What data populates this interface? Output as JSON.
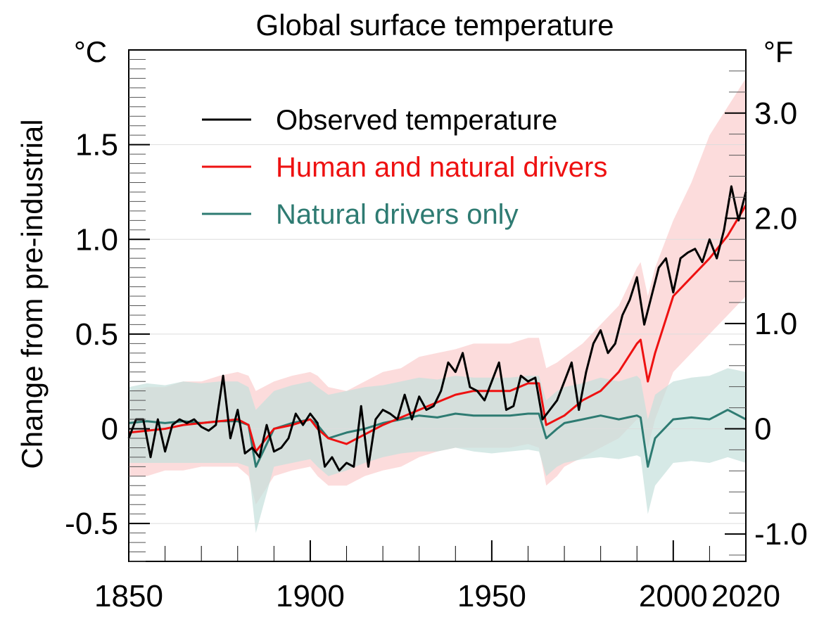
{
  "chart_data": {
    "type": "line",
    "title": "Global surface temperature",
    "ylabel": "Change from pre-industrial",
    "y_unit_left": "°C",
    "y_unit_right": "°F",
    "xlim": [
      1850,
      2020
    ],
    "ylim": [
      -0.7,
      2.0
    ],
    "grid": true,
    "legend_placement": "top-left",
    "x_ticks": [
      {
        "value": 1850,
        "label": "1850"
      },
      {
        "value": 1900,
        "label": "1900"
      },
      {
        "value": 1950,
        "label": "1950"
      },
      {
        "value": 2000,
        "label": "2000"
      },
      {
        "value": 2020,
        "label": "2020"
      }
    ],
    "y_ticks_left": [
      {
        "value": -0.5,
        "label": "-0.5"
      },
      {
        "value": 0,
        "label": "0"
      },
      {
        "value": 0.5,
        "label": "0.5"
      },
      {
        "value": 1.0,
        "label": "1.0"
      },
      {
        "value": 1.5,
        "label": "1.5"
      }
    ],
    "y_ticks_right": [
      {
        "value": -1.0,
        "label": "-1.0"
      },
      {
        "value": 0,
        "label": "0"
      },
      {
        "value": 1.0,
        "label": "1.0"
      },
      {
        "value": 2.0,
        "label": "2.0"
      },
      {
        "value": 3.0,
        "label": "3.0"
      }
    ],
    "series": [
      {
        "name": "Observed temperature",
        "color": "#000000",
        "x": [
          1850,
          1852,
          1854,
          1856,
          1858,
          1860,
          1862,
          1864,
          1866,
          1868,
          1870,
          1872,
          1874,
          1876,
          1878,
          1880,
          1882,
          1884,
          1886,
          1888,
          1890,
          1892,
          1894,
          1896,
          1898,
          1900,
          1902,
          1904,
          1906,
          1908,
          1910,
          1912,
          1914,
          1916,
          1918,
          1920,
          1922,
          1924,
          1926,
          1928,
          1930,
          1932,
          1934,
          1936,
          1938,
          1940,
          1942,
          1944,
          1946,
          1948,
          1950,
          1952,
          1954,
          1956,
          1958,
          1960,
          1962,
          1964,
          1966,
          1968,
          1970,
          1972,
          1974,
          1976,
          1978,
          1980,
          1982,
          1984,
          1986,
          1988,
          1990,
          1992,
          1994,
          1996,
          1998,
          2000,
          2002,
          2004,
          2006,
          2008,
          2010,
          2012,
          2014,
          2016,
          2018,
          2020
        ],
        "values": [
          -0.05,
          0.05,
          0.05,
          -0.15,
          0.05,
          -0.12,
          0.02,
          0.05,
          0.03,
          0.05,
          0.01,
          -0.01,
          0.02,
          0.28,
          -0.05,
          0.1,
          -0.13,
          -0.1,
          -0.15,
          0.02,
          -0.12,
          -0.1,
          -0.05,
          0.08,
          0.02,
          0.08,
          0.03,
          -0.2,
          -0.15,
          -0.22,
          -0.18,
          -0.2,
          0.12,
          -0.2,
          0.05,
          0.1,
          0.08,
          0.05,
          0.18,
          0.05,
          0.17,
          0.1,
          0.12,
          0.2,
          0.35,
          0.3,
          0.4,
          0.22,
          0.2,
          0.15,
          0.25,
          0.35,
          0.1,
          0.12,
          0.28,
          0.25,
          0.27,
          0.05,
          0.1,
          0.15,
          0.25,
          0.35,
          0.1,
          0.3,
          0.45,
          0.52,
          0.4,
          0.45,
          0.6,
          0.68,
          0.8,
          0.55,
          0.7,
          0.85,
          0.9,
          0.72,
          0.9,
          0.93,
          0.95,
          0.88,
          1.0,
          0.9,
          1.05,
          1.28,
          1.1,
          1.25
        ]
      },
      {
        "name": "Human and natural drivers",
        "color": "#ee1111",
        "x": [
          1850,
          1855,
          1860,
          1865,
          1870,
          1875,
          1880,
          1883,
          1885,
          1890,
          1895,
          1900,
          1902,
          1905,
          1910,
          1915,
          1920,
          1925,
          1930,
          1935,
          1940,
          1945,
          1950,
          1955,
          1960,
          1963,
          1965,
          1968,
          1970,
          1975,
          1980,
          1985,
          1990,
          1991,
          1993,
          1995,
          2000,
          2005,
          2010,
          2015,
          2020
        ],
        "values": [
          -0.02,
          -0.01,
          0.0,
          0.02,
          0.03,
          0.04,
          0.05,
          0.02,
          -0.12,
          0.0,
          0.02,
          0.05,
          0.0,
          -0.05,
          -0.08,
          -0.03,
          0.02,
          0.06,
          0.1,
          0.14,
          0.18,
          0.2,
          0.2,
          0.2,
          0.24,
          0.24,
          0.02,
          0.05,
          0.07,
          0.15,
          0.2,
          0.3,
          0.45,
          0.47,
          0.25,
          0.4,
          0.7,
          0.8,
          0.9,
          1.02,
          1.18
        ]
      },
      {
        "name": "Natural drivers only",
        "color": "#2e7b72",
        "x": [
          1850,
          1855,
          1860,
          1865,
          1870,
          1875,
          1880,
          1883,
          1885,
          1890,
          1895,
          1900,
          1902,
          1905,
          1910,
          1915,
          1920,
          1925,
          1930,
          1935,
          1940,
          1945,
          1950,
          1955,
          1960,
          1963,
          1965,
          1968,
          1970,
          1975,
          1980,
          1985,
          1990,
          1991,
          1993,
          1995,
          2000,
          2005,
          2010,
          2015,
          2020
        ],
        "values": [
          0.03,
          0.04,
          0.03,
          0.04,
          0.03,
          0.04,
          0.04,
          0.02,
          -0.2,
          0.0,
          0.03,
          0.05,
          0.02,
          -0.05,
          -0.02,
          0.0,
          0.03,
          0.05,
          0.07,
          0.06,
          0.08,
          0.07,
          0.07,
          0.07,
          0.08,
          0.08,
          -0.05,
          0.0,
          0.03,
          0.05,
          0.07,
          0.05,
          0.07,
          0.06,
          -0.2,
          -0.05,
          0.05,
          0.06,
          0.05,
          0.1,
          0.05
        ]
      }
    ],
    "bands": [
      {
        "color": "#fbd0d0",
        "x": [
          1850,
          1855,
          1860,
          1865,
          1870,
          1875,
          1880,
          1883,
          1885,
          1890,
          1895,
          1900,
          1902,
          1905,
          1910,
          1915,
          1920,
          1925,
          1930,
          1935,
          1940,
          1945,
          1950,
          1955,
          1960,
          1963,
          1965,
          1968,
          1970,
          1975,
          1980,
          1985,
          1990,
          1991,
          1993,
          1995,
          2000,
          2005,
          2010,
          2015,
          2020
        ],
        "lower": [
          -0.25,
          -0.25,
          -0.22,
          -0.22,
          -0.2,
          -0.2,
          -0.2,
          -0.25,
          -0.4,
          -0.25,
          -0.22,
          -0.2,
          -0.25,
          -0.3,
          -0.3,
          -0.25,
          -0.22,
          -0.2,
          -0.15,
          -0.12,
          -0.1,
          -0.1,
          -0.1,
          -0.1,
          -0.08,
          -0.1,
          -0.3,
          -0.25,
          -0.2,
          -0.15,
          -0.1,
          -0.05,
          0.05,
          0.05,
          -0.1,
          0.05,
          0.3,
          0.4,
          0.5,
          0.6,
          0.7
        ],
        "upper": [
          0.2,
          0.22,
          0.22,
          0.25,
          0.25,
          0.28,
          0.3,
          0.28,
          0.2,
          0.25,
          0.28,
          0.3,
          0.28,
          0.22,
          0.2,
          0.25,
          0.3,
          0.32,
          0.38,
          0.4,
          0.42,
          0.45,
          0.45,
          0.45,
          0.48,
          0.48,
          0.32,
          0.35,
          0.38,
          0.45,
          0.55,
          0.65,
          0.85,
          0.88,
          0.7,
          0.85,
          1.1,
          1.3,
          1.55,
          1.7,
          1.85
        ]
      },
      {
        "color": "#c4dfdc",
        "x": [
          1850,
          1855,
          1860,
          1865,
          1870,
          1875,
          1880,
          1883,
          1885,
          1890,
          1895,
          1900,
          1902,
          1905,
          1910,
          1915,
          1920,
          1925,
          1930,
          1935,
          1940,
          1945,
          1950,
          1955,
          1960,
          1963,
          1965,
          1968,
          1970,
          1975,
          1980,
          1985,
          1990,
          1991,
          1993,
          1995,
          2000,
          2005,
          2010,
          2015,
          2020
        ],
        "lower": [
          -0.18,
          -0.18,
          -0.18,
          -0.18,
          -0.18,
          -0.18,
          -0.18,
          -0.2,
          -0.55,
          -0.2,
          -0.18,
          -0.16,
          -0.2,
          -0.25,
          -0.22,
          -0.18,
          -0.15,
          -0.13,
          -0.12,
          -0.12,
          -0.1,
          -0.12,
          -0.13,
          -0.12,
          -0.11,
          -0.12,
          -0.25,
          -0.2,
          -0.18,
          -0.16,
          -0.15,
          -0.16,
          -0.14,
          -0.15,
          -0.45,
          -0.3,
          -0.18,
          -0.17,
          -0.18,
          -0.15,
          -0.18
        ],
        "upper": [
          0.22,
          0.24,
          0.23,
          0.25,
          0.24,
          0.25,
          0.25,
          0.22,
          0.1,
          0.2,
          0.23,
          0.25,
          0.22,
          0.18,
          0.2,
          0.22,
          0.23,
          0.25,
          0.27,
          0.26,
          0.28,
          0.27,
          0.27,
          0.27,
          0.28,
          0.28,
          0.15,
          0.2,
          0.22,
          0.24,
          0.27,
          0.25,
          0.28,
          0.26,
          0.05,
          0.18,
          0.25,
          0.27,
          0.28,
          0.32,
          0.3
        ]
      }
    ]
  }
}
